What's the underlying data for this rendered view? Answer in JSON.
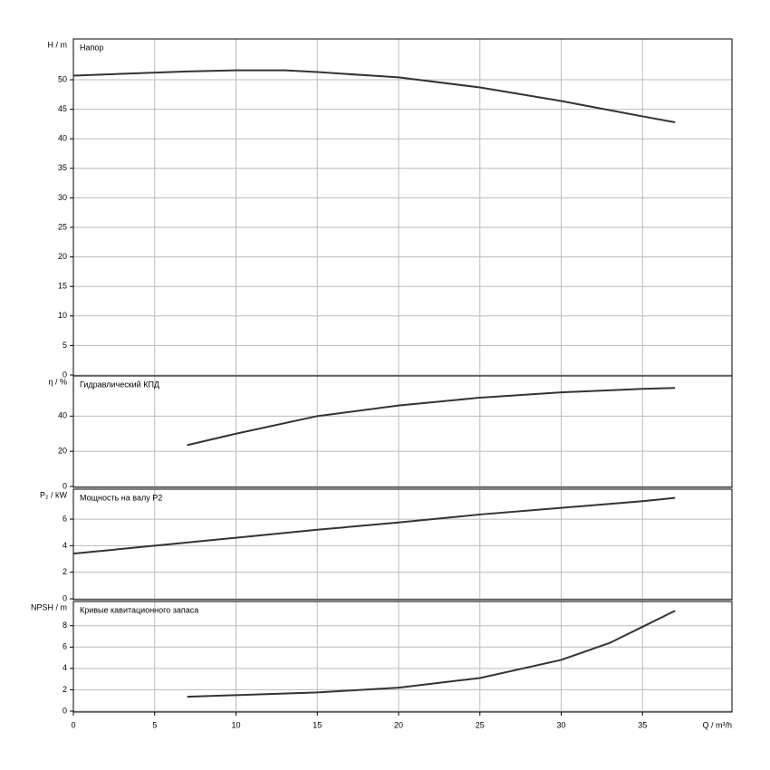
{
  "chart_data": [
    {
      "type": "line",
      "title": "Напор",
      "ylabel": "H / m",
      "color": "#333333",
      "x": [
        0,
        7,
        10,
        13,
        15,
        20,
        25,
        30,
        35,
        37
      ],
      "values": [
        50.7,
        51.4,
        51.6,
        51.6,
        51.3,
        50.4,
        48.7,
        46.4,
        43.8,
        42.8
      ],
      "xlim": [
        0,
        40.5
      ],
      "ylim": [
        0,
        56.6
      ],
      "yticks": [
        0,
        5,
        10,
        15,
        20,
        25,
        30,
        35,
        40,
        45,
        50
      ],
      "grid": true
    },
    {
      "type": "line",
      "title": "Гидравлический КПД",
      "ylabel": "η / %",
      "color": "#333333",
      "x": [
        7,
        10,
        15,
        20,
        25,
        30,
        35,
        37
      ],
      "values": [
        23.5,
        30,
        40,
        46,
        50.5,
        53.5,
        55.5,
        56
      ],
      "xlim": [
        0,
        40.5
      ],
      "ylim": [
        0,
        61.8
      ],
      "yticks": [
        0,
        20,
        40
      ],
      "grid": true
    },
    {
      "type": "line",
      "title": "Мощность на валу P2",
      "ylabel": "P₂ / kW",
      "color": "#333333",
      "x": [
        0,
        5,
        10,
        15,
        20,
        25,
        30,
        35,
        37
      ],
      "values": [
        3.4,
        4.0,
        4.6,
        5.2,
        5.75,
        6.35,
        6.85,
        7.35,
        7.6
      ],
      "xlim": [
        0,
        40.5
      ],
      "ylim": [
        0,
        8.12
      ],
      "yticks": [
        0,
        2,
        4,
        6
      ],
      "grid": true
    },
    {
      "type": "line",
      "title": "Кривые кавитационного запаса",
      "ylabel": "NPSH / m",
      "xlabel": "Q / m³/h",
      "color": "#333333",
      "x": [
        7,
        10,
        15,
        20,
        25,
        30,
        33,
        35,
        37
      ],
      "values": [
        1.35,
        1.5,
        1.75,
        2.2,
        3.1,
        4.8,
        6.4,
        7.9,
        9.4
      ],
      "xlim": [
        0,
        40.5
      ],
      "ylim": [
        0,
        10.1
      ],
      "xticks": [
        0,
        5,
        10,
        15,
        20,
        25,
        30,
        35
      ],
      "yticks": [
        0,
        2,
        4,
        6,
        8
      ],
      "grid": true
    }
  ]
}
